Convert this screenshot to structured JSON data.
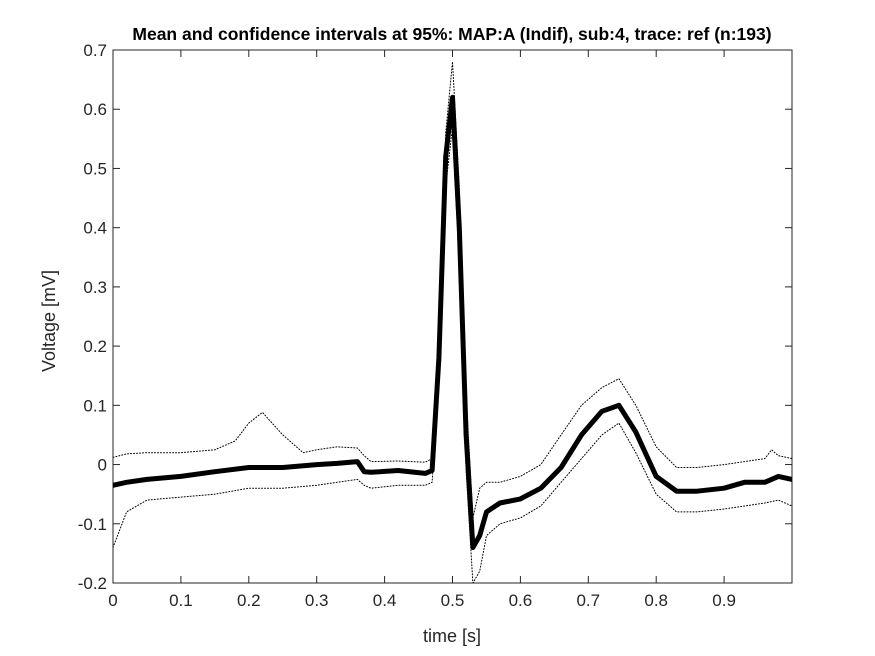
{
  "chart_data": {
    "type": "line",
    "title": "Mean and confidence intervals at 95%: MAP:A (Indif), sub:4, trace: ref (n:193)",
    "xlabel": "time [s]",
    "ylabel": "Voltage [mV]",
    "xlim": [
      0,
      1
    ],
    "ylim": [
      -0.2,
      0.7
    ],
    "xticks": [
      0,
      0.1,
      0.2,
      0.3,
      0.4,
      0.5,
      0.6,
      0.7,
      0.8,
      0.9
    ],
    "xtick_labels": [
      "0",
      "0.1",
      "0.2",
      "0.3",
      "0.4",
      "0.5",
      "0.6",
      "0.7",
      "0.8",
      "0.9"
    ],
    "yticks": [
      -0.2,
      -0.1,
      0,
      0.1,
      0.2,
      0.3,
      0.4,
      0.5,
      0.6,
      0.7
    ],
    "ytick_labels": [
      "-0.2",
      "-0.1",
      "0",
      "0.1",
      "0.2",
      "0.3",
      "0.4",
      "0.5",
      "0.6",
      "0.7"
    ],
    "grid": false,
    "box": true,
    "series": [
      {
        "role": "mean",
        "style": "solid-thick",
        "color": "#000000",
        "x": [
          0,
          0.02,
          0.05,
          0.1,
          0.15,
          0.2,
          0.25,
          0.3,
          0.33,
          0.36,
          0.37,
          0.38,
          0.42,
          0.46,
          0.47,
          0.48,
          0.49,
          0.5,
          0.51,
          0.52,
          0.53,
          0.54,
          0.55,
          0.57,
          0.6,
          0.63,
          0.66,
          0.69,
          0.72,
          0.745,
          0.77,
          0.8,
          0.83,
          0.86,
          0.9,
          0.93,
          0.96,
          0.98,
          1.0
        ],
        "y": [
          -0.035,
          -0.03,
          -0.025,
          -0.02,
          -0.012,
          -0.005,
          -0.005,
          0.0,
          0.002,
          0.005,
          -0.012,
          -0.013,
          -0.01,
          -0.015,
          -0.01,
          0.18,
          0.52,
          0.62,
          0.4,
          0.05,
          -0.14,
          -0.12,
          -0.08,
          -0.065,
          -0.058,
          -0.04,
          -0.005,
          0.05,
          0.09,
          0.1,
          0.055,
          -0.02,
          -0.045,
          -0.045,
          -0.04,
          -0.03,
          -0.03,
          -0.02,
          -0.025
        ]
      },
      {
        "role": "upper-ci",
        "style": "dotted",
        "color": "#000000",
        "x": [
          0,
          0.02,
          0.05,
          0.1,
          0.15,
          0.18,
          0.2,
          0.22,
          0.25,
          0.28,
          0.3,
          0.33,
          0.36,
          0.37,
          0.38,
          0.42,
          0.46,
          0.47,
          0.48,
          0.49,
          0.5,
          0.51,
          0.52,
          0.53,
          0.54,
          0.55,
          0.57,
          0.6,
          0.63,
          0.66,
          0.69,
          0.72,
          0.745,
          0.77,
          0.8,
          0.83,
          0.86,
          0.9,
          0.93,
          0.96,
          0.97,
          0.98,
          1.0
        ],
        "y": [
          0.012,
          0.018,
          0.02,
          0.02,
          0.025,
          0.04,
          0.07,
          0.088,
          0.05,
          0.02,
          0.025,
          0.03,
          0.028,
          0.015,
          0.005,
          0.006,
          0.004,
          0.01,
          0.21,
          0.56,
          0.68,
          0.47,
          0.12,
          -0.09,
          -0.04,
          -0.03,
          -0.03,
          -0.02,
          0.0,
          0.05,
          0.1,
          0.13,
          0.145,
          0.1,
          0.03,
          -0.005,
          -0.005,
          0.0,
          0.005,
          0.01,
          0.025,
          0.015,
          0.01
        ]
      },
      {
        "role": "lower-ci",
        "style": "dotted",
        "color": "#000000",
        "x": [
          0,
          0.02,
          0.05,
          0.1,
          0.15,
          0.2,
          0.25,
          0.3,
          0.33,
          0.36,
          0.37,
          0.38,
          0.42,
          0.46,
          0.47,
          0.48,
          0.49,
          0.5,
          0.51,
          0.52,
          0.53,
          0.54,
          0.55,
          0.57,
          0.6,
          0.63,
          0.66,
          0.69,
          0.72,
          0.745,
          0.77,
          0.8,
          0.83,
          0.86,
          0.9,
          0.93,
          0.96,
          0.98,
          1.0
        ],
        "y": [
          -0.14,
          -0.08,
          -0.06,
          -0.055,
          -0.05,
          -0.04,
          -0.04,
          -0.035,
          -0.03,
          -0.025,
          -0.035,
          -0.04,
          -0.035,
          -0.035,
          -0.03,
          0.14,
          0.47,
          0.57,
          0.33,
          -0.01,
          -0.2,
          -0.18,
          -0.12,
          -0.1,
          -0.09,
          -0.07,
          -0.03,
          0.01,
          0.05,
          0.07,
          0.02,
          -0.05,
          -0.08,
          -0.08,
          -0.075,
          -0.07,
          -0.065,
          -0.06,
          -0.07
        ]
      }
    ]
  }
}
